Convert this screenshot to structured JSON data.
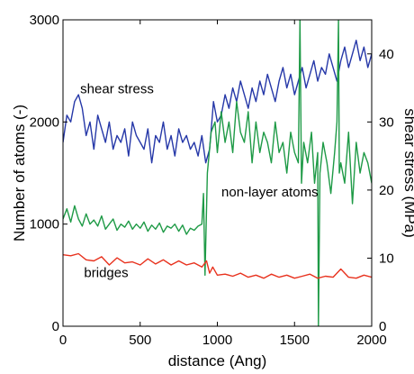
{
  "chart_data": {
    "type": "line",
    "xlabel": "distance (Ang)",
    "ylabel_left": "Number of atoms (-)",
    "ylabel_right": "shear stress (MPa)",
    "xlim": [
      0,
      2000
    ],
    "ylim_left": [
      0,
      3000
    ],
    "ylim_right": [
      0,
      45
    ],
    "x_ticks": [
      0,
      500,
      1000,
      1500,
      2000
    ],
    "y_left_ticks": [
      0,
      1000,
      2000,
      3000
    ],
    "y_right_ticks": [
      0,
      10,
      20,
      30,
      40
    ],
    "grid": false,
    "annotations": [
      {
        "text": "shear stress",
        "x": 350,
        "y_left": 2280
      },
      {
        "text": "non-layer atoms",
        "x": 1340,
        "y_left": 1270
      },
      {
        "text": "bridges",
        "x": 280,
        "y_left": 480
      }
    ],
    "series": [
      {
        "name": "shear stress",
        "axis": "right",
        "color": "#2638a8",
        "x": [
          0,
          25,
          50,
          75,
          100,
          125,
          150,
          175,
          200,
          225,
          250,
          275,
          300,
          325,
          350,
          375,
          400,
          425,
          450,
          475,
          500,
          525,
          550,
          575,
          600,
          625,
          650,
          675,
          700,
          725,
          750,
          775,
          800,
          825,
          850,
          875,
          900,
          925,
          950,
          975,
          1000,
          1025,
          1050,
          1075,
          1100,
          1125,
          1150,
          1175,
          1200,
          1225,
          1250,
          1275,
          1300,
          1325,
          1350,
          1375,
          1400,
          1425,
          1450,
          1475,
          1500,
          1525,
          1550,
          1575,
          1600,
          1625,
          1650,
          1675,
          1700,
          1725,
          1750,
          1775,
          1800,
          1825,
          1850,
          1875,
          1900,
          1925,
          1950,
          1975,
          2000
        ],
        "values": [
          27,
          31,
          30,
          33,
          34,
          32,
          28,
          30,
          26,
          31,
          29,
          27,
          30,
          26,
          28,
          27,
          29,
          25,
          30,
          28,
          27,
          26,
          29,
          24,
          28,
          27,
          30,
          26,
          28,
          25,
          29,
          27,
          28,
          26,
          27,
          25,
          28,
          24,
          26,
          33,
          30,
          31,
          34,
          32,
          35,
          33,
          36,
          34,
          32,
          35,
          33,
          36,
          34,
          37,
          35,
          33,
          36,
          38,
          35,
          37,
          34,
          36,
          38,
          35,
          37,
          39,
          36,
          38,
          37,
          40,
          38,
          36,
          39,
          41,
          38,
          40,
          42,
          39,
          41,
          38,
          40
        ]
      },
      {
        "name": "non-layer atoms",
        "axis": "left",
        "color": "#1e9a46",
        "x": [
          0,
          25,
          50,
          75,
          100,
          125,
          150,
          175,
          200,
          225,
          250,
          275,
          300,
          325,
          350,
          375,
          400,
          425,
          450,
          475,
          500,
          525,
          550,
          575,
          600,
          625,
          650,
          675,
          700,
          725,
          750,
          775,
          800,
          825,
          850,
          875,
          900,
          910,
          920,
          935,
          960,
          985,
          1000,
          1025,
          1050,
          1075,
          1100,
          1125,
          1150,
          1175,
          1200,
          1225,
          1250,
          1275,
          1300,
          1325,
          1350,
          1375,
          1400,
          1425,
          1450,
          1475,
          1500,
          1525,
          1535,
          1545,
          1560,
          1585,
          1610,
          1630,
          1650,
          1655,
          1665,
          1685,
          1710,
          1735,
          1760,
          1775,
          1785,
          1790,
          1800,
          1825,
          1850,
          1875,
          1900,
          1925,
          1950,
          1975,
          2000
        ],
        "values": [
          1050,
          1150,
          1020,
          1180,
          1050,
          980,
          1100,
          1000,
          1040,
          980,
          1080,
          950,
          1000,
          1050,
          940,
          1000,
          970,
          1030,
          950,
          1000,
          960,
          1020,
          930,
          990,
          950,
          1010,
          920,
          980,
          960,
          1000,
          930,
          990,
          900,
          960,
          940,
          980,
          1000,
          1300,
          500,
          1500,
          1900,
          2000,
          1700,
          2100,
          1800,
          2000,
          1700,
          2200,
          1900,
          1800,
          2100,
          1600,
          2000,
          1700,
          1900,
          1800,
          1600,
          2000,
          1700,
          1800,
          1500,
          1900,
          1700,
          1600,
          3000,
          1400,
          1800,
          1600,
          1900,
          1400,
          1700,
          0,
          1500,
          1800,
          1600,
          1300,
          1700,
          2000,
          3000,
          1500,
          1600,
          1400,
          1900,
          1200,
          1800,
          1500,
          1700,
          1600,
          1400
        ]
      },
      {
        "name": "bridges",
        "axis": "left",
        "color": "#e8321e",
        "x": [
          0,
          50,
          100,
          150,
          200,
          250,
          300,
          350,
          400,
          450,
          500,
          550,
          600,
          650,
          700,
          750,
          800,
          850,
          900,
          930,
          950,
          970,
          1000,
          1050,
          1100,
          1150,
          1200,
          1250,
          1300,
          1350,
          1400,
          1450,
          1500,
          1550,
          1600,
          1650,
          1700,
          1750,
          1800,
          1850,
          1900,
          1950,
          2000
        ],
        "values": [
          700,
          690,
          710,
          650,
          640,
          680,
          600,
          670,
          620,
          630,
          600,
          660,
          610,
          650,
          600,
          640,
          600,
          620,
          580,
          640,
          520,
          580,
          500,
          510,
          490,
          520,
          480,
          500,
          470,
          510,
          480,
          500,
          470,
          490,
          510,
          470,
          490,
          480,
          560,
          480,
          470,
          500,
          480
        ]
      }
    ]
  }
}
